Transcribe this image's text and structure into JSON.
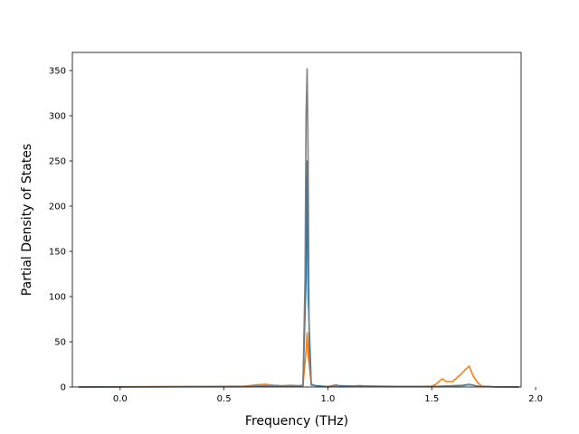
{
  "chart_data": {
    "type": "line",
    "title": "",
    "xlabel": "Frequency (THz)",
    "ylabel": "Partial Density of States",
    "xlim": [
      -0.23,
      1.93
    ],
    "ylim": [
      0,
      370
    ],
    "x_ticks": [
      0.0,
      0.5,
      1.0,
      1.5,
      2.0
    ],
    "x_tick_labels": [
      "0.0",
      "0.5",
      "1.0",
      "1.5",
      "2.0"
    ],
    "y_ticks": [
      0,
      50,
      100,
      150,
      200,
      250,
      300,
      350
    ],
    "y_tick_labels": [
      "0",
      "50",
      "100",
      "150",
      "200",
      "250",
      "300",
      "350"
    ],
    "grid": false,
    "legend": "none",
    "series": [
      {
        "color": "#ff7f0e",
        "x": [
          -0.2,
          0.0,
          0.2,
          0.4,
          0.6,
          0.66,
          0.7,
          0.74,
          0.78,
          0.82,
          0.86,
          0.88,
          0.895,
          0.9,
          0.905,
          0.92,
          0.95,
          1.0,
          1.04,
          1.06,
          1.1,
          1.15,
          1.2,
          1.3,
          1.4,
          1.5,
          1.52,
          1.55,
          1.57,
          1.6,
          1.62,
          1.64,
          1.66,
          1.68,
          1.7,
          1.72,
          1.74,
          1.8,
          1.92
        ],
        "y": [
          0,
          0.3,
          0.4,
          0.5,
          1.0,
          2.5,
          3.0,
          2.0,
          1.5,
          2.0,
          1.5,
          2.0,
          40,
          60,
          35,
          3,
          1,
          0.5,
          2.5,
          0.5,
          0.5,
          1.5,
          1.0,
          0.5,
          0.5,
          1.0,
          3.0,
          9.0,
          6.0,
          6.0,
          10.0,
          14.0,
          19.0,
          23.0,
          12.0,
          5.0,
          1.0,
          0.2,
          0
        ]
      },
      {
        "color": "#1f77b4",
        "x": [
          -0.2,
          0.2,
          0.6,
          0.7,
          0.8,
          0.88,
          0.895,
          0.9,
          0.905,
          0.92,
          1.0,
          1.04,
          1.15,
          1.5,
          1.65,
          1.68,
          1.72,
          1.8,
          1.92
        ],
        "y": [
          0,
          0.2,
          0.5,
          1.0,
          0.8,
          1.0,
          120,
          250,
          100,
          2,
          0.3,
          1.5,
          1.0,
          0.5,
          1.5,
          2.5,
          1.0,
          0.2,
          0
        ]
      },
      {
        "color": "#7f7f7f",
        "x": [
          -0.2,
          0.2,
          0.6,
          0.7,
          0.8,
          0.88,
          0.89,
          0.895,
          0.9,
          0.905,
          0.91,
          0.92,
          0.95,
          1.0,
          1.04,
          1.06,
          1.15,
          1.2,
          1.5,
          1.65,
          1.68,
          1.72,
          1.8,
          1.92
        ],
        "y": [
          0,
          0.3,
          0.6,
          1.5,
          1.0,
          1.5,
          120,
          300,
          352,
          250,
          40,
          3,
          0.5,
          0.3,
          2.0,
          0.5,
          1.5,
          1.0,
          0.5,
          2.0,
          3.0,
          1.0,
          0.2,
          0
        ]
      }
    ]
  }
}
